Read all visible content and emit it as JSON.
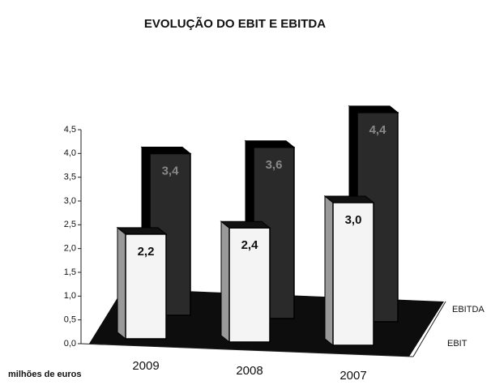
{
  "chart_data": {
    "type": "bar3d",
    "title": "EVOLUÇÃO DO EBIT E EBITDA",
    "unit_label": "milhões de euros",
    "categories": [
      "2009",
      "2008",
      "2007"
    ],
    "series": [
      {
        "name": "EBIT",
        "color": "#f4f4f4",
        "values": [
          2.2,
          2.4,
          3.0
        ],
        "value_labels": [
          "2,2",
          "2,4",
          "3,0"
        ]
      },
      {
        "name": "EBITDA",
        "color": "#2a2a2a",
        "values": [
          3.4,
          3.6,
          4.4
        ],
        "value_labels": [
          "3,4",
          "3,6",
          "4,4"
        ]
      }
    ],
    "ylim": [
      0,
      4.5
    ],
    "yticks": [
      {
        "value": 0,
        "label": "0,0"
      },
      {
        "value": 0.5,
        "label": "0,5"
      },
      {
        "value": 1,
        "label": "1,0"
      },
      {
        "value": 1.5,
        "label": "1,5"
      },
      {
        "value": 2,
        "label": "2,0"
      },
      {
        "value": 2.5,
        "label": "2,5"
      },
      {
        "value": 3,
        "label": "3,0"
      },
      {
        "value": 3.5,
        "label": "3,5"
      },
      {
        "value": 4,
        "label": "4,0"
      },
      {
        "value": 4.5,
        "label": "4,5"
      }
    ]
  }
}
